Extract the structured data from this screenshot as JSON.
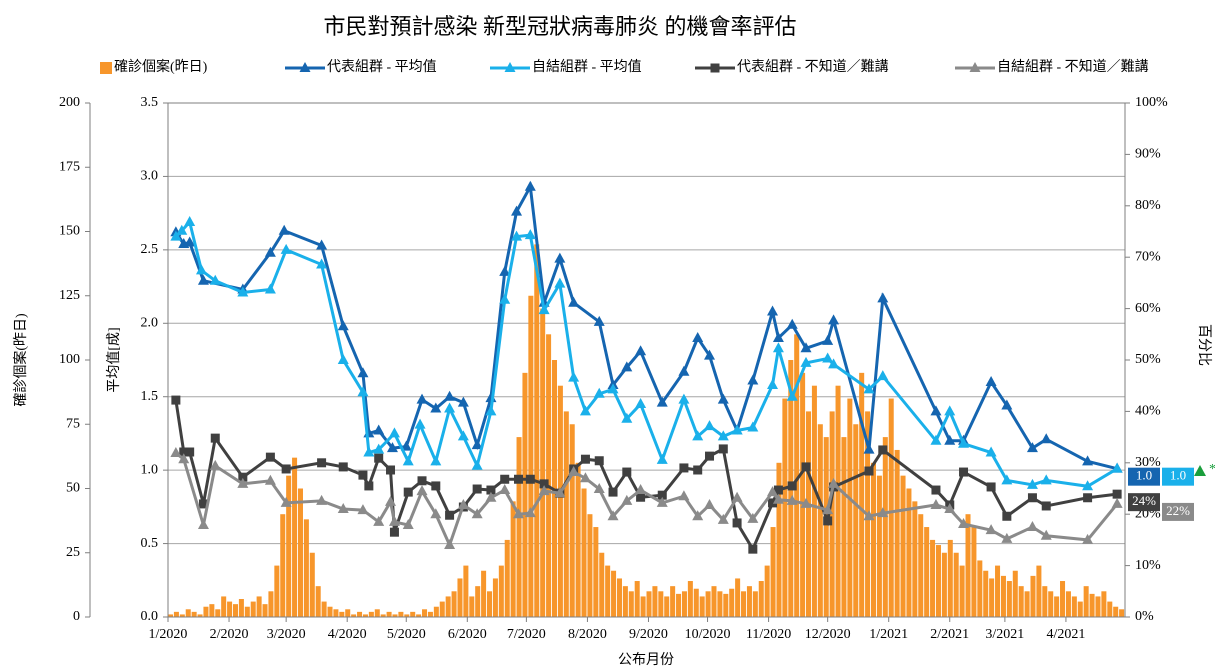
{
  "chart_data": {
    "type": "combo",
    "title": "市民對預計感染 新型冠狀病毒肺炎 的機會率評估",
    "x_label": "公布月份",
    "y_label": "平均值[成]",
    "y2_label": "百分比",
    "y3_label": "確診個案(昨日)",
    "xlim": [
      0,
      486
    ],
    "xticks": [
      {
        "value": 0,
        "label": "1/2020"
      },
      {
        "value": 31,
        "label": "2/2020"
      },
      {
        "value": 60,
        "label": "3/2020"
      },
      {
        "value": 91,
        "label": "4/2020"
      },
      {
        "value": 121,
        "label": "5/2020"
      },
      {
        "value": 152,
        "label": "6/2020"
      },
      {
        "value": 182,
        "label": "7/2020"
      },
      {
        "value": 213,
        "label": "8/2020"
      },
      {
        "value": 244,
        "label": "9/2020"
      },
      {
        "value": 274,
        "label": "10/2020"
      },
      {
        "value": 305,
        "label": "11/2020"
      },
      {
        "value": 335,
        "label": "12/2020"
      },
      {
        "value": 366,
        "label": "1/2021"
      },
      {
        "value": 397,
        "label": "2/2021"
      },
      {
        "value": 425,
        "label": "3/2021"
      },
      {
        "value": 456,
        "label": "4/2021"
      }
    ],
    "ylim": [
      0,
      3.5
    ],
    "yticks": [
      {
        "value": 0,
        "label": "0.0"
      },
      0.5,
      {
        "value": 1,
        "label": "1.0"
      },
      1.5,
      {
        "value": 2,
        "label": "2.0"
      },
      2.5,
      {
        "value": 3,
        "label": "3.0"
      },
      3.5
    ],
    "y2lim": [
      0,
      100
    ],
    "y2ticks": [
      {
        "value": 0,
        "label": "0%"
      },
      {
        "value": 10,
        "label": "10%"
      },
      {
        "value": 20,
        "label": "20%"
      },
      {
        "value": 30,
        "label": "30%"
      },
      {
        "value": 40,
        "label": "40%"
      },
      {
        "value": 50,
        "label": "50%"
      },
      {
        "value": 60,
        "label": "60%"
      },
      {
        "value": 70,
        "label": "70%"
      },
      {
        "value": 80,
        "label": "80%"
      },
      {
        "value": 90,
        "label": "90%"
      },
      {
        "value": 100,
        "label": "100%"
      }
    ],
    "y3lim": [
      0,
      200
    ],
    "y3ticks": [
      0,
      25,
      50,
      75,
      100,
      125,
      150,
      175,
      200
    ],
    "grid": true,
    "legend": "top",
    "marker_note": "*",
    "series": [
      {
        "name": "確診個案(昨日)",
        "type": "bar",
        "axis": "y3",
        "color": "#f7962b",
        "x": [
          0,
          3,
          6,
          9,
          12,
          15,
          18,
          21,
          24,
          27,
          30,
          33,
          36,
          39,
          42,
          45,
          48,
          51,
          54,
          57,
          60,
          63,
          66,
          69,
          72,
          75,
          78,
          81,
          84,
          87,
          90,
          93,
          96,
          99,
          102,
          105,
          108,
          111,
          114,
          117,
          120,
          123,
          126,
          129,
          132,
          135,
          138,
          141,
          144,
          147,
          150,
          153,
          156,
          159,
          162,
          165,
          168,
          171,
          174,
          177,
          180,
          183,
          186,
          189,
          192,
          195,
          198,
          201,
          204,
          207,
          210,
          213,
          216,
          219,
          222,
          225,
          228,
          231,
          234,
          237,
          240,
          243,
          246,
          249,
          252,
          255,
          258,
          261,
          264,
          267,
          270,
          273,
          276,
          279,
          282,
          285,
          288,
          291,
          294,
          297,
          300,
          303,
          306,
          309,
          312,
          315,
          318,
          321,
          324,
          327,
          330,
          333,
          336,
          339,
          342,
          345,
          348,
          351,
          354,
          357,
          360,
          363,
          366,
          369,
          372,
          375,
          378,
          381,
          384,
          387,
          390,
          393,
          396,
          399,
          402,
          405,
          408,
          411,
          414,
          417,
          420,
          423,
          426,
          429,
          432,
          435,
          438,
          441,
          444,
          447,
          450,
          453,
          456,
          459,
          462,
          465,
          468,
          471,
          474,
          477,
          480,
          483
        ],
        "values": [
          1,
          2,
          1,
          3,
          2,
          1,
          4,
          5,
          3,
          8,
          6,
          5,
          7,
          4,
          6,
          8,
          5,
          10,
          20,
          40,
          55,
          62,
          50,
          38,
          25,
          12,
          6,
          4,
          3,
          2,
          3,
          1,
          2,
          1,
          2,
          3,
          1,
          2,
          1,
          2,
          1,
          2,
          1,
          3,
          2,
          4,
          6,
          8,
          10,
          15,
          20,
          8,
          12,
          18,
          10,
          15,
          20,
          30,
          45,
          70,
          95,
          125,
          145,
          120,
          110,
          100,
          90,
          80,
          75,
          60,
          50,
          40,
          35,
          25,
          20,
          18,
          15,
          12,
          10,
          14,
          8,
          10,
          12,
          10,
          8,
          12,
          9,
          10,
          14,
          11,
          8,
          10,
          12,
          10,
          9,
          11,
          15,
          10,
          12,
          10,
          14,
          20,
          35,
          60,
          85,
          100,
          110,
          95,
          80,
          90,
          75,
          70,
          80,
          90,
          70,
          85,
          75,
          95,
          80,
          60,
          55,
          70,
          85,
          65,
          55,
          50,
          45,
          40,
          35,
          30,
          28,
          25,
          30,
          25,
          20,
          40,
          35,
          22,
          18,
          15,
          20,
          16,
          14,
          18,
          12,
          10,
          16,
          20,
          12,
          10,
          8,
          14,
          10,
          8,
          6,
          12,
          9,
          8,
          10,
          6,
          4,
          3
        ]
      },
      {
        "name": "代表組群 - 平均值",
        "type": "line",
        "axis": "y",
        "color": "#1565b0",
        "marker": "triangle",
        "end_label": "1.0",
        "x": [
          4,
          8,
          11,
          18,
          38,
          52,
          59,
          78,
          89,
          99,
          102,
          107,
          114,
          121,
          129,
          136,
          143,
          150,
          157,
          164,
          171,
          177,
          184,
          191,
          199,
          206,
          219,
          226,
          233,
          240,
          251,
          262,
          269,
          275,
          282,
          289,
          297,
          307,
          310,
          317,
          324,
          335,
          338,
          356,
          363,
          390,
          397,
          404,
          418,
          426,
          439,
          446,
          467,
          482
        ],
        "values": [
          2.62,
          2.54,
          2.55,
          2.29,
          2.23,
          2.48,
          2.63,
          2.53,
          1.98,
          1.66,
          1.25,
          1.27,
          1.15,
          1.16,
          1.48,
          1.42,
          1.5,
          1.46,
          1.17,
          1.49,
          2.35,
          2.76,
          2.93,
          2.14,
          2.44,
          2.14,
          2.01,
          1.58,
          1.7,
          1.81,
          1.46,
          1.67,
          1.9,
          1.78,
          1.48,
          1.27,
          1.61,
          2.08,
          1.9,
          1.99,
          1.83,
          1.88,
          2.02,
          1.14,
          2.17,
          1.4,
          1.2,
          1.2,
          1.6,
          1.44,
          1.15,
          1.21,
          1.06,
          1.01
        ]
      },
      {
        "name": "自結組群 - 平均值",
        "type": "line",
        "axis": "y",
        "color": "#1ab0ea",
        "marker": "triangle",
        "end_label": "1.0",
        "x": [
          4,
          7,
          11,
          17,
          24,
          38,
          52,
          60,
          78,
          89,
          99,
          102,
          107,
          115,
          122,
          128,
          136,
          143,
          150,
          157,
          164,
          171,
          177,
          184,
          191,
          199,
          206,
          212,
          219,
          226,
          233,
          240,
          251,
          262,
          269,
          275,
          282,
          289,
          297,
          307,
          310,
          317,
          324,
          335,
          338,
          356,
          363,
          390,
          397,
          404,
          418,
          426,
          439,
          446,
          467,
          482
        ],
        "values": [
          2.59,
          2.63,
          2.69,
          2.36,
          2.29,
          2.21,
          2.23,
          2.5,
          2.4,
          1.75,
          1.53,
          1.12,
          1.14,
          1.25,
          1.06,
          1.31,
          1.06,
          1.42,
          1.23,
          1.03,
          1.4,
          2.16,
          2.59,
          2.6,
          2.09,
          2.27,
          1.63,
          1.4,
          1.52,
          1.55,
          1.35,
          1.45,
          1.07,
          1.48,
          1.23,
          1.3,
          1.23,
          1.27,
          1.29,
          1.58,
          1.83,
          1.5,
          1.73,
          1.76,
          1.72,
          1.55,
          1.64,
          1.2,
          1.4,
          1.18,
          1.12,
          0.93,
          0.9,
          0.93,
          0.89,
          1.01
        ]
      },
      {
        "name": "代表組群 - 不知道／難講",
        "type": "line",
        "axis": "y2",
        "color": "#404040",
        "marker": "square",
        "end_label": "24%",
        "x": [
          4,
          8,
          11,
          18,
          24,
          38,
          52,
          60,
          78,
          89,
          99,
          102,
          107,
          113,
          115,
          122,
          129,
          136,
          143,
          150,
          157,
          164,
          171,
          178,
          184,
          191,
          199,
          206,
          212,
          219,
          226,
          233,
          240,
          251,
          262,
          269,
          275,
          282,
          289,
          297,
          307,
          310,
          317,
          324,
          335,
          338,
          356,
          363,
          390,
          397,
          404,
          418,
          426,
          439,
          446,
          467,
          482
        ],
        "values": [
          42.2,
          32.1,
          32.1,
          22,
          34.8,
          27.2,
          31.1,
          28.8,
          30,
          29.2,
          27.6,
          25.5,
          30.9,
          28.6,
          16.5,
          24.3,
          26.5,
          25.5,
          19.8,
          21.4,
          24.9,
          24.7,
          26.8,
          26.8,
          26.8,
          25.9,
          24.1,
          28.8,
          30.7,
          30.4,
          24.3,
          28.2,
          23.3,
          23.7,
          29,
          28.6,
          31.3,
          32.7,
          18.3,
          13.2,
          22.2,
          24.7,
          25.5,
          29.2,
          18.7,
          25.3,
          28.4,
          32.5,
          24.7,
          21.8,
          28.2,
          25.3,
          19.6,
          23.2,
          21.6,
          23.2,
          23.9
        ]
      },
      {
        "name": "自結組群 - 不知道／難講",
        "type": "line",
        "axis": "y2",
        "color": "#8a8a8a",
        "marker": "triangle",
        "end_label": "22%",
        "x": [
          4,
          8,
          18,
          24,
          38,
          52,
          60,
          78,
          89,
          99,
          107,
          113,
          115,
          122,
          129,
          136,
          143,
          150,
          157,
          164,
          171,
          178,
          184,
          191,
          199,
          206,
          212,
          219,
          226,
          233,
          240,
          251,
          262,
          269,
          275,
          282,
          289,
          297,
          307,
          310,
          317,
          324,
          335,
          338,
          356,
          363,
          390,
          397,
          404,
          418,
          426,
          439,
          446,
          467,
          482
        ],
        "values": [
          31.9,
          30.7,
          17.9,
          29.4,
          25.9,
          26.5,
          22.2,
          22.6,
          21,
          20.8,
          18.5,
          22.4,
          18.5,
          17.9,
          24.5,
          20,
          14,
          21.8,
          20,
          23.2,
          24.7,
          20,
          20.2,
          24.5,
          24.1,
          28.2,
          27,
          24.9,
          19.6,
          22.6,
          24.7,
          22.2,
          23.5,
          19.6,
          21.8,
          18.9,
          23.2,
          19.1,
          24.3,
          22.8,
          22.6,
          22,
          20.8,
          25.9,
          19.6,
          20.2,
          21.8,
          21,
          18.1,
          16.9,
          15.2,
          17.5,
          15.8,
          15,
          22
        ]
      }
    ]
  }
}
